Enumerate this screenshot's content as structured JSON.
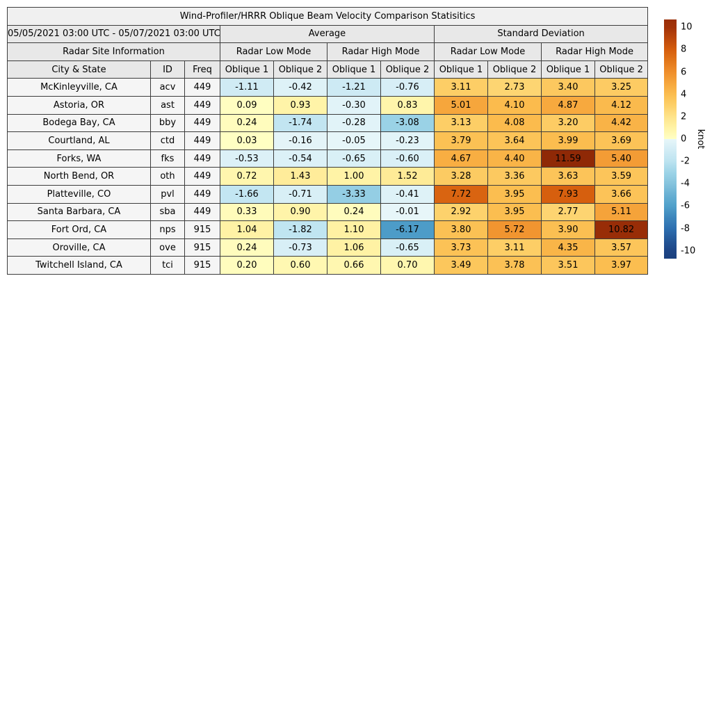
{
  "chart_data": {
    "type": "table",
    "title": "Wind-Profiler/HRRR Oblique Beam Velocity Comparison Statisitics",
    "date_range": "05/05/2021 03:00 UTC - 05/07/2021 03:00 UTC",
    "header": {
      "site_info": "Radar Site Information",
      "avg": "Average",
      "std": "Standard Deviation",
      "low_mode": "Radar Low Mode",
      "high_mode": "Radar High Mode",
      "city": "City & State",
      "id": "ID",
      "freq": "Freq",
      "oblique1": "Oblique 1",
      "oblique2": "Oblique 2"
    },
    "rows": [
      {
        "city": "McKinleyville, CA",
        "id": "acv",
        "freq": 449,
        "values": [
          -1.11,
          -0.42,
          -1.21,
          -0.76,
          3.11,
          2.73,
          3.4,
          3.25
        ]
      },
      {
        "city": "Astoria, OR",
        "id": "ast",
        "freq": 449,
        "values": [
          0.09,
          0.93,
          -0.3,
          0.83,
          5.01,
          4.1,
          4.87,
          4.12
        ]
      },
      {
        "city": "Bodega Bay, CA",
        "id": "bby",
        "freq": 449,
        "values": [
          0.24,
          -1.74,
          -0.28,
          -3.08,
          3.13,
          4.08,
          3.2,
          4.42
        ]
      },
      {
        "city": "Courtland, AL",
        "id": "ctd",
        "freq": 449,
        "values": [
          0.03,
          -0.16,
          -0.05,
          -0.23,
          3.79,
          3.64,
          3.99,
          3.69
        ]
      },
      {
        "city": "Forks, WA",
        "id": "fks",
        "freq": 449,
        "values": [
          -0.53,
          -0.54,
          -0.65,
          -0.6,
          4.67,
          4.4,
          11.59,
          5.4
        ]
      },
      {
        "city": "North Bend, OR",
        "id": "oth",
        "freq": 449,
        "values": [
          0.72,
          1.43,
          1.0,
          1.52,
          3.28,
          3.36,
          3.63,
          3.59
        ]
      },
      {
        "city": "Platteville, CO",
        "id": "pvl",
        "freq": 449,
        "values": [
          -1.66,
          -0.71,
          -3.33,
          -0.41,
          7.72,
          3.95,
          7.93,
          3.66
        ]
      },
      {
        "city": "Santa Barbara, CA",
        "id": "sba",
        "freq": 449,
        "values": [
          0.33,
          0.9,
          0.24,
          -0.01,
          2.92,
          3.95,
          2.77,
          5.11
        ]
      },
      {
        "city": "Fort Ord, CA",
        "id": "nps",
        "freq": 915,
        "values": [
          1.04,
          -1.82,
          1.1,
          -6.17,
          3.8,
          5.72,
          3.9,
          10.82
        ]
      },
      {
        "city": "Oroville, CA",
        "id": "ove",
        "freq": 915,
        "values": [
          0.24,
          -0.73,
          1.06,
          -0.65,
          3.73,
          3.11,
          4.35,
          3.57
        ]
      },
      {
        "city": "Twitchell Island, CA",
        "id": "tci",
        "freq": 915,
        "values": [
          0.2,
          0.6,
          0.66,
          0.7,
          3.49,
          3.78,
          3.51,
          3.97
        ]
      }
    ],
    "colorbar": {
      "label": "knot",
      "ticks": [
        10,
        8,
        6,
        4,
        2,
        0,
        -2,
        -4,
        -6,
        -8,
        -10
      ],
      "vmin": -10.7,
      "vmax": 10.7
    }
  },
  "colormap": {
    "positive": [
      [
        0,
        "#ffffc4"
      ],
      [
        1,
        "#fff3a6"
      ],
      [
        2,
        "#fee38a"
      ],
      [
        3,
        "#fdd069"
      ],
      [
        4,
        "#fbbd4f"
      ],
      [
        5,
        "#f6a63c"
      ],
      [
        6,
        "#ef8e2b"
      ],
      [
        7,
        "#e2761a"
      ],
      [
        8,
        "#d55d0d"
      ],
      [
        9,
        "#bc470b"
      ],
      [
        10,
        "#a23208"
      ],
      [
        12,
        "#8a2706"
      ]
    ],
    "negative": [
      [
        -11,
        "#193c79"
      ],
      [
        -10,
        "#1d4586"
      ],
      [
        -9,
        "#245899"
      ],
      [
        -8,
        "#2d6fb0"
      ],
      [
        -7,
        "#3d86bc"
      ],
      [
        -6,
        "#50a0ca"
      ],
      [
        -5,
        "#68b0d3"
      ],
      [
        -4,
        "#85c3dd"
      ],
      [
        -3,
        "#9cd3e7"
      ],
      [
        -2,
        "#bce3f0"
      ],
      [
        -1,
        "#d2ecf5"
      ],
      [
        -0.0001,
        "#e7f6f9"
      ]
    ]
  }
}
